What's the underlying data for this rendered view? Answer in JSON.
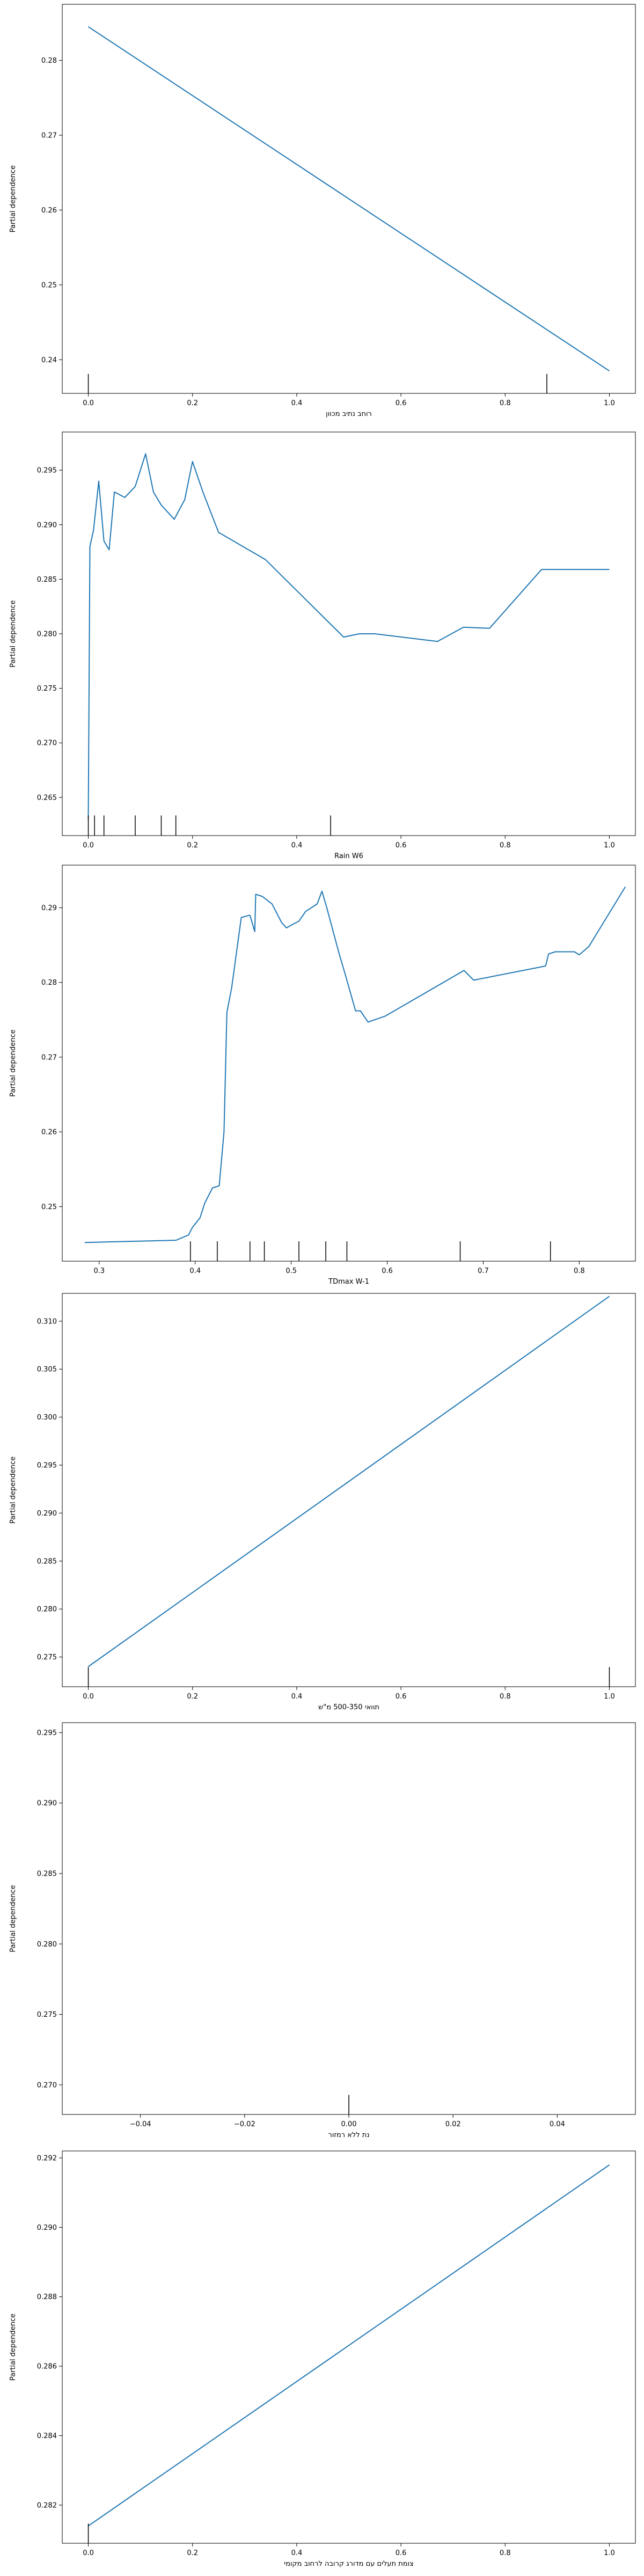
{
  "chart_data": [
    {
      "type": "line",
      "xlabel": "רוחב נתיב מכוון",
      "ylabel": "Partial dependence",
      "xlim": [
        -0.05,
        1.05
      ],
      "ylim": [
        0.2355,
        0.2875
      ],
      "xticks": [
        "0.0",
        "0.2",
        "0.4",
        "0.6",
        "0.8",
        "1.0"
      ],
      "yticks": [
        "0.24",
        "0.25",
        "0.26",
        "0.27",
        "0.28"
      ],
      "series": [
        {
          "x": [
            0.0,
            1.0
          ],
          "y": [
            0.2845,
            0.2385
          ]
        }
      ],
      "rug": [
        0.0,
        0.88
      ]
    },
    {
      "type": "line",
      "xlabel": "Rain W6",
      "ylabel": "Partial dependence",
      "xlim": [
        -0.05,
        1.05
      ],
      "ylim": [
        0.2615,
        0.2985
      ],
      "xticks": [
        "0.0",
        "0.2",
        "0.4",
        "0.6",
        "0.8",
        "1.0"
      ],
      "yticks": [
        "0.265",
        "0.270",
        "0.275",
        "0.280",
        "0.285",
        "0.290",
        "0.295"
      ],
      "series": [
        {
          "x": [
            0.0,
            0.003,
            0.01,
            0.02,
            0.03,
            0.04,
            0.05,
            0.07,
            0.09,
            0.11,
            0.125,
            0.14,
            0.165,
            0.185,
            0.2,
            0.22,
            0.25,
            0.34,
            0.49,
            0.52,
            0.55,
            0.67,
            0.72,
            0.77,
            0.87,
            1.0
          ],
          "y": [
            0.263,
            0.288,
            0.2895,
            0.294,
            0.2885,
            0.2877,
            0.293,
            0.2925,
            0.2935,
            0.2965,
            0.293,
            0.2918,
            0.2905,
            0.2923,
            0.2958,
            0.293,
            0.2893,
            0.2868,
            0.2797,
            0.28,
            0.28,
            0.2793,
            0.2806,
            0.2805,
            0.2859,
            0.2859
          ]
        }
      ],
      "rug": [
        0.0,
        0.012,
        0.03,
        0.09,
        0.14,
        0.168,
        0.465
      ]
    },
    {
      "type": "line",
      "xlabel": "TDmax W-1",
      "ylabel": "Partial dependence",
      "xlim": [
        0.2615,
        0.8585
      ],
      "ylim": [
        0.2427,
        0.2957
      ],
      "xticks": [
        "0.3",
        "0.4",
        "0.5",
        "0.6",
        "0.7",
        "0.8"
      ],
      "xtick_values": [
        0.3,
        0.4,
        0.5,
        0.6,
        0.7,
        0.8
      ],
      "yticks": [
        "0.25",
        "0.26",
        "0.27",
        "0.28",
        "0.29"
      ],
      "series": [
        {
          "x": [
            0.285,
            0.38,
            0.393,
            0.397,
            0.405,
            0.41,
            0.418,
            0.425,
            0.43,
            0.433,
            0.438,
            0.448,
            0.457,
            0.462,
            0.463,
            0.47,
            0.48,
            0.49,
            0.495,
            0.502,
            0.508,
            0.515,
            0.527,
            0.532,
            0.537,
            0.55,
            0.556,
            0.567,
            0.572,
            0.58,
            0.598,
            0.68,
            0.69,
            0.765,
            0.768,
            0.775,
            0.795,
            0.8,
            0.81,
            0.848
          ],
          "y": [
            0.2452,
            0.2455,
            0.2462,
            0.2472,
            0.2485,
            0.2505,
            0.2525,
            0.2528,
            0.26,
            0.276,
            0.2793,
            0.2887,
            0.289,
            0.2868,
            0.2918,
            0.2915,
            0.2905,
            0.288,
            0.2873,
            0.2878,
            0.2882,
            0.2895,
            0.2905,
            0.2922,
            0.29,
            0.2838,
            0.2812,
            0.2762,
            0.2762,
            0.2747,
            0.2755,
            0.2816,
            0.2803,
            0.2822,
            0.2838,
            0.2841,
            0.2841,
            0.2837,
            0.2848,
            0.2928
          ]
        }
      ],
      "rug": [
        0.395,
        0.423,
        0.457,
        0.472,
        0.508,
        0.536,
        0.558,
        0.676,
        0.77
      ]
    },
    {
      "type": "line",
      "xlabel": "תוואי 500-350 מ\"ש",
      "ylabel": "Partial dependence",
      "xlim": [
        -0.05,
        1.05
      ],
      "ylim": [
        0.2719,
        0.3129
      ],
      "xticks": [
        "0.0",
        "0.2",
        "0.4",
        "0.6",
        "0.8",
        "1.0"
      ],
      "yticks": [
        "0.275",
        "0.280",
        "0.285",
        "0.290",
        "0.295",
        "0.300",
        "0.305",
        "0.310"
      ],
      "series": [
        {
          "x": [
            0.0,
            1.0
          ],
          "y": [
            0.274,
            0.3126
          ]
        }
      ],
      "rug": [
        0.0,
        1.0
      ]
    },
    {
      "type": "line",
      "xlabel": "נת ללא רמזור",
      "ylabel": "Partial dependence",
      "xlim": [
        -0.055,
        0.055
      ],
      "ylim": [
        0.2679,
        0.2957
      ],
      "xticks": [
        "−0.04",
        "−0.02",
        "0.00",
        "0.02",
        "0.04"
      ],
      "xtick_values": [
        -0.04,
        -0.02,
        0.0,
        0.02,
        0.04
      ],
      "yticks": [
        "0.270",
        "0.275",
        "0.280",
        "0.285",
        "0.290",
        "0.295"
      ],
      "series": [],
      "rug": [
        0.0
      ]
    },
    {
      "type": "line",
      "xlabel": "צומת תעלים עם מדורג קרובה לרחוב מקומי",
      "ylabel": "Partial dependence",
      "xlim": [
        -0.05,
        1.05
      ],
      "ylim": [
        0.2809,
        0.2922
      ],
      "xticks": [
        "0.0",
        "0.2",
        "0.4",
        "0.6",
        "0.8",
        "1.0"
      ],
      "yticks": [
        "0.282",
        "0.284",
        "0.286",
        "0.288",
        "0.290",
        "0.292"
      ],
      "series": [
        {
          "x": [
            0.0,
            1.0
          ],
          "y": [
            0.2814,
            0.2918
          ]
        }
      ],
      "rug": [
        0.0
      ]
    }
  ],
  "colors": {
    "line": "#1f77b4",
    "rug": "#000000",
    "axis": "#000000"
  }
}
